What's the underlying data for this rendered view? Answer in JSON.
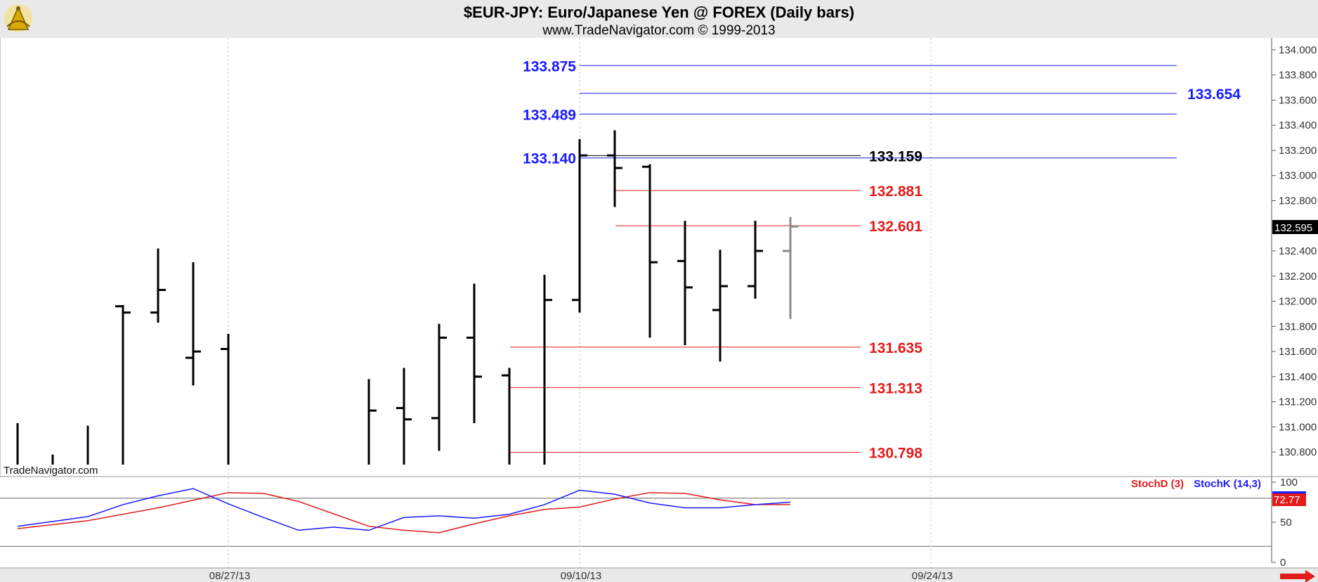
{
  "header": {
    "title": "$EUR-JPY:  Euro/Japanese Yen @ FOREX  (Daily bars)",
    "subtitle": "www.TradeNavigator.com © 1999-2013"
  },
  "watermark": "TradeNavigator.com",
  "logo_icon": "sextant-logo",
  "scroll_icon": "arrow-right-icon",
  "colors": {
    "bars": "#000000",
    "last_bar": "#8a8a8a",
    "blue": "#1a1aff",
    "red": "#e31b1b",
    "grid": "#c8c8c8",
    "band": "#e9e9e9"
  },
  "chart_data": [
    {
      "type": "ohlc",
      "y_axis_side": "right",
      "ylim": [
        130.7,
        134.05
      ],
      "y_ticks": [
        "134.000",
        "133.800",
        "133.600",
        "133.400",
        "133.200",
        "133.000",
        "132.800",
        "132.600",
        "132.400",
        "132.200",
        "132.000",
        "131.800",
        "131.600",
        "131.400",
        "131.200",
        "131.000",
        "130.800"
      ],
      "x_ticks": [
        {
          "label": "08/27/13",
          "index": 6
        },
        {
          "label": "09/10/13",
          "index": 16
        },
        {
          "label": "09/24/13",
          "index": 26
        }
      ],
      "last_price": "132.595",
      "bars": [
        {
          "o": null,
          "h": 131.03,
          "l": 130.7,
          "c": null
        },
        {
          "o": null,
          "h": 130.78,
          "l": 130.7,
          "c": null
        },
        {
          "o": null,
          "h": 131.01,
          "l": 130.7,
          "c": null
        },
        {
          "o": 131.96,
          "h": 131.97,
          "l": 130.7,
          "c": 131.91
        },
        {
          "o": 131.91,
          "h": 132.42,
          "l": 131.83,
          "c": 132.09
        },
        {
          "o": 131.55,
          "h": 132.31,
          "l": 131.33,
          "c": 131.6
        },
        {
          "o": 131.62,
          "h": 131.74,
          "l": 130.7,
          "c": null
        },
        {
          "o": null,
          "h": null,
          "l": null,
          "c": null
        },
        {
          "o": null,
          "h": null,
          "l": null,
          "c": null
        },
        {
          "o": null,
          "h": null,
          "l": null,
          "c": null
        },
        {
          "o": null,
          "h": 131.38,
          "l": 130.7,
          "c": 131.13
        },
        {
          "o": 131.15,
          "h": 131.47,
          "l": 130.7,
          "c": 131.06
        },
        {
          "o": 131.07,
          "h": 131.82,
          "l": 130.81,
          "c": 131.71
        },
        {
          "o": 131.71,
          "h": 132.14,
          "l": 131.03,
          "c": 131.4
        },
        {
          "o": 131.41,
          "h": 131.47,
          "l": 130.7,
          "c": null
        },
        {
          "o": null,
          "h": 132.21,
          "l": 130.7,
          "c": 132.01
        },
        {
          "o": 132.01,
          "h": 133.29,
          "l": 131.91,
          "c": 133.16
        },
        {
          "o": 133.16,
          "h": 133.36,
          "l": 132.75,
          "c": 133.06
        },
        {
          "o": 133.07,
          "h": 133.09,
          "l": 131.71,
          "c": 132.31
        },
        {
          "o": 132.32,
          "h": 132.64,
          "l": 131.65,
          "c": 132.11
        },
        {
          "o": 131.93,
          "h": 132.41,
          "l": 131.52,
          "c": 132.12
        },
        {
          "o": 132.12,
          "h": 132.64,
          "l": 132.02,
          "c": 132.4
        },
        {
          "o": 132.4,
          "h": 132.67,
          "l": 131.86,
          "c": 132.595
        }
      ],
      "levels": [
        {
          "value": 133.875,
          "label": "133.875",
          "color": "blue",
          "label_side": "left",
          "from": 16.5,
          "to": 33
        },
        {
          "value": 133.654,
          "label": "133.654",
          "color": "blue",
          "label_side": "right",
          "from": 16.5,
          "to": 33
        },
        {
          "value": 133.489,
          "label": "133.489",
          "color": "blue",
          "label_side": "left",
          "from": 16.5,
          "to": 33
        },
        {
          "value": 133.14,
          "label": "133.140",
          "color": "blue",
          "label_side": "left",
          "from": 16.5,
          "to": 33
        },
        {
          "value": 133.159,
          "label": "133.159",
          "color": "black",
          "label_side": "right",
          "from": 16.5,
          "to": 24
        },
        {
          "value": 132.881,
          "label": "132.881",
          "color": "red",
          "label_side": "right",
          "from": 17.5,
          "to": 24
        },
        {
          "value": 132.601,
          "label": "132.601",
          "color": "red",
          "label_side": "right",
          "from": 17.5,
          "to": 24
        },
        {
          "value": 131.635,
          "label": "131.635",
          "color": "red",
          "label_side": "right",
          "from": 14.5,
          "to": 24
        },
        {
          "value": 131.313,
          "label": "131.313",
          "color": "red",
          "label_side": "right",
          "from": 14.5,
          "to": 24
        },
        {
          "value": 130.798,
          "label": "130.798",
          "color": "red",
          "label_side": "right",
          "from": 14.5,
          "to": 24
        }
      ]
    },
    {
      "type": "line",
      "ylim": [
        0,
        100
      ],
      "y_ticks": [
        "100",
        "50",
        "0"
      ],
      "reference_lines": [
        80,
        20
      ],
      "last_value": "72.77",
      "series": [
        {
          "name": "StochD (3)",
          "color": "red",
          "values": [
            [
              0,
              42
            ],
            [
              2,
              52
            ],
            [
              4,
              68
            ],
            [
              6,
              87
            ],
            [
              7,
              86
            ],
            [
              8,
              76
            ],
            [
              10,
              45
            ],
            [
              11,
              40
            ],
            [
              12,
              37
            ],
            [
              13,
              48
            ],
            [
              14,
              58
            ],
            [
              15,
              66
            ],
            [
              16,
              69
            ],
            [
              17,
              79
            ],
            [
              18,
              87
            ],
            [
              19,
              86
            ],
            [
              20,
              78
            ],
            [
              21,
              72
            ],
            [
              22,
              72
            ]
          ]
        },
        {
          "name": "StochK (14,3)",
          "color": "blue",
          "values": [
            [
              0,
              45
            ],
            [
              2,
              57
            ],
            [
              3,
              72
            ],
            [
              4,
              83
            ],
            [
              5,
              92
            ],
            [
              6,
              73
            ],
            [
              7,
              56
            ],
            [
              8,
              40
            ],
            [
              9,
              44
            ],
            [
              10,
              40
            ],
            [
              11,
              56
            ],
            [
              12,
              58
            ],
            [
              13,
              55
            ],
            [
              14,
              60
            ],
            [
              15,
              72
            ],
            [
              16,
              90
            ],
            [
              17,
              85
            ],
            [
              18,
              74
            ],
            [
              19,
              68
            ],
            [
              20,
              68
            ],
            [
              21,
              72
            ],
            [
              22,
              75
            ]
          ]
        }
      ]
    }
  ]
}
